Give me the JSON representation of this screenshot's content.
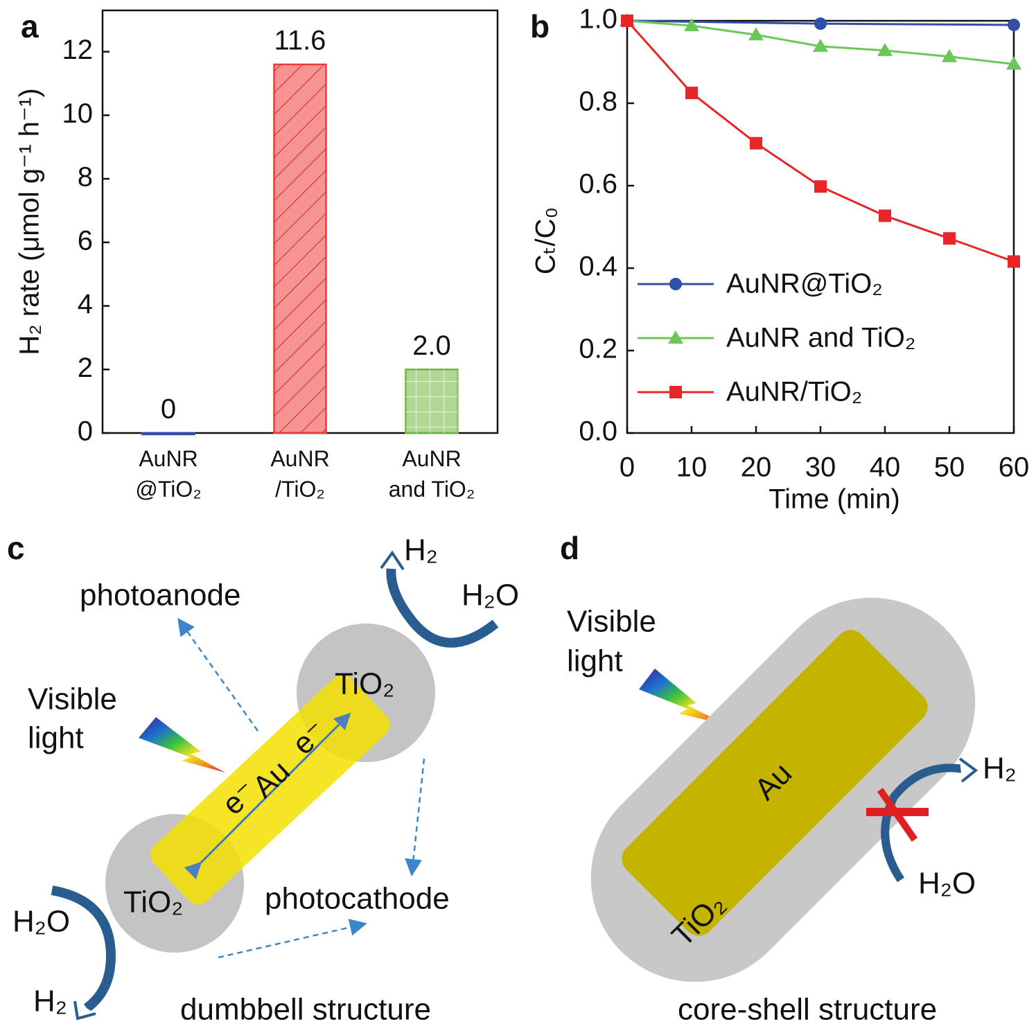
{
  "chart_data": [
    {
      "type": "bar",
      "panel_label": "a",
      "ylabel": "H₂ rate (μmol g⁻¹ h⁻¹)",
      "categories": [
        "AuNR\n@TiO₂",
        "AuNR\n/TiO₂",
        "AuNR\nand TiO₂"
      ],
      "values": [
        0,
        11.6,
        2.0
      ],
      "value_labels": [
        "0",
        "11.6",
        "2.0"
      ],
      "colors": [
        "#2f4fa8",
        "#ee3a3a",
        "#6cb83a"
      ],
      "hatch": [
        "none",
        "diagonal",
        "grid"
      ],
      "ylim": [
        0,
        13.3
      ],
      "yticks": [
        0,
        2,
        4,
        6,
        8,
        10,
        12
      ]
    },
    {
      "type": "line",
      "panel_label": "b",
      "xlabel": "Time (min)",
      "ylabel": "Cₜ/C₀",
      "x": [
        0,
        10,
        20,
        30,
        40,
        50,
        60
      ],
      "xlim": [
        0,
        60
      ],
      "ylim": [
        0,
        1.0
      ],
      "xticks": [
        0,
        10,
        20,
        30,
        40,
        50,
        60
      ],
      "yticks": [
        {
          "value": 0,
          "label": "0.0"
        },
        {
          "value": 0.2,
          "label": "0.2"
        },
        {
          "value": 0.4,
          "label": "0.4"
        },
        {
          "value": 0.6,
          "label": "0.6"
        },
        {
          "value": 0.8,
          "label": "0.8"
        },
        {
          "value": 1.0,
          "label": "1.0"
        }
      ],
      "legend": "lower left",
      "series": [
        {
          "name": "AuNR@TiO₂",
          "color": "#2f4fa8",
          "marker": "circle",
          "x": [
            0,
            30,
            60
          ],
          "values": [
            1.0,
            0.993,
            0.99
          ]
        },
        {
          "name": "AuNR and TiO₂",
          "color": "#6cc75a",
          "marker": "triangle",
          "values": [
            1.0,
            0.988,
            0.966,
            0.938,
            0.928,
            0.913,
            0.895
          ]
        },
        {
          "name": "AuNR/TiO₂",
          "color": "#e8262a",
          "marker": "square",
          "values": [
            1.0,
            0.825,
            0.703,
            0.598,
            0.527,
            0.472,
            0.416
          ]
        }
      ]
    }
  ],
  "diagrams": {
    "c": {
      "panel_label": "c",
      "photoanode": "photoanode",
      "h2_top": "H₂",
      "h2o_top": "H₂O",
      "tio2_top": "TiO₂",
      "tio2_bottom": "TiO₂",
      "visible": "Visible",
      "light": "light",
      "e_left": "e⁻",
      "au": "Au",
      "e_right": "e⁻",
      "photocathode": "photocathode",
      "h2o_bottom": "H₂O",
      "h2_bottom": "H₂",
      "caption": "dumbbell structure"
    },
    "d": {
      "panel_label": "d",
      "visible": "Visible",
      "light": "light",
      "au": "Au",
      "tio2": "TiO₂",
      "h2": "H₂",
      "h2o": "H₂O",
      "caption": "core-shell structure"
    }
  }
}
